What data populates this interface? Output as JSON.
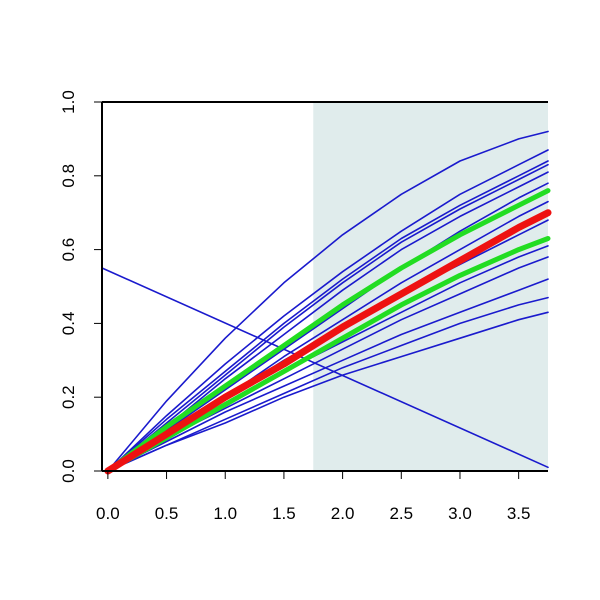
{
  "chart_data": {
    "type": "line",
    "title": "",
    "xlabel": "",
    "ylabel": "",
    "xlim": [
      -0.05,
      3.75
    ],
    "ylim": [
      0,
      1
    ],
    "x_ticks": [
      "0.0",
      "0.5",
      "1.0",
      "1.5",
      "2.0",
      "2.5",
      "3.0",
      "3.5"
    ],
    "y_ticks": [
      "0.0",
      "0.2",
      "0.4",
      "0.6",
      "0.8",
      "1.0"
    ],
    "x_tick_values": [
      0,
      0.5,
      1,
      1.5,
      2,
      2.5,
      3,
      3.5
    ],
    "y_tick_values": [
      0,
      0.2,
      0.4,
      0.6,
      0.8,
      1.0
    ],
    "shaded_region": {
      "x_from": 1.75,
      "x_to": 3.75,
      "color": "#e0ecec"
    },
    "grid": false,
    "legend": "none",
    "colors": {
      "blue": "#1a1acd",
      "red": "#ee1111",
      "green": "#22dd22"
    },
    "series": [
      {
        "color": "blue",
        "width": "thin",
        "x": [
          0,
          0.5,
          1,
          1.5,
          2,
          2.5,
          3,
          3.5,
          3.75
        ],
        "y": [
          0,
          0.19,
          0.36,
          0.51,
          0.64,
          0.75,
          0.84,
          0.9,
          0.92
        ]
      },
      {
        "color": "blue",
        "width": "thin",
        "x": [
          0,
          0.5,
          1,
          1.5,
          2,
          2.5,
          3,
          3.5,
          3.75
        ],
        "y": [
          0,
          0.15,
          0.29,
          0.42,
          0.54,
          0.65,
          0.75,
          0.83,
          0.87
        ]
      },
      {
        "color": "blue",
        "width": "thin",
        "x": [
          0,
          0.5,
          1,
          1.5,
          2,
          2.5,
          3,
          3.5,
          3.75
        ],
        "y": [
          0,
          0.14,
          0.27,
          0.4,
          0.52,
          0.63,
          0.72,
          0.8,
          0.84
        ]
      },
      {
        "color": "blue",
        "width": "thin",
        "x": [
          0,
          0.5,
          1,
          1.5,
          2,
          2.5,
          3,
          3.5,
          3.75
        ],
        "y": [
          0,
          0.13,
          0.26,
          0.39,
          0.51,
          0.62,
          0.71,
          0.79,
          0.83
        ]
      },
      {
        "color": "blue",
        "width": "thin",
        "x": [
          0,
          0.5,
          1,
          1.5,
          2,
          2.5,
          3,
          3.5,
          3.75
        ],
        "y": [
          0,
          0.12,
          0.25,
          0.37,
          0.49,
          0.6,
          0.69,
          0.77,
          0.81
        ]
      },
      {
        "color": "blue",
        "width": "thin",
        "x": [
          0,
          0.5,
          1,
          1.5,
          2,
          2.5,
          3,
          3.5,
          3.75
        ],
        "y": [
          0,
          0.11,
          0.22,
          0.33,
          0.44,
          0.55,
          0.65,
          0.74,
          0.78
        ]
      },
      {
        "color": "blue",
        "width": "thin",
        "x": [
          0,
          0.5,
          1,
          1.5,
          2,
          2.5,
          3,
          3.5,
          3.75
        ],
        "y": [
          0,
          0.1,
          0.2,
          0.31,
          0.41,
          0.51,
          0.6,
          0.69,
          0.73
        ]
      },
      {
        "color": "blue",
        "width": "thin",
        "x": [
          0,
          0.5,
          1,
          1.5,
          2,
          2.5,
          3,
          3.5,
          3.75
        ],
        "y": [
          0,
          0.1,
          0.2,
          0.3,
          0.39,
          0.48,
          0.56,
          0.64,
          0.68
        ]
      },
      {
        "color": "blue",
        "width": "thin",
        "x": [
          0,
          0.5,
          1,
          1.5,
          2,
          2.5,
          3,
          3.5,
          3.75
        ],
        "y": [
          0,
          0.09,
          0.18,
          0.27,
          0.35,
          0.43,
          0.51,
          0.58,
          0.61
        ]
      },
      {
        "color": "blue",
        "width": "thin",
        "x": [
          0,
          0.5,
          1,
          1.5,
          2,
          2.5,
          3,
          3.5,
          3.75
        ],
        "y": [
          0,
          0.09,
          0.17,
          0.25,
          0.33,
          0.41,
          0.48,
          0.55,
          0.58
        ]
      },
      {
        "color": "blue",
        "width": "thin",
        "x": [
          0,
          0.5,
          1,
          1.5,
          2,
          2.5,
          3,
          3.5,
          3.75
        ],
        "y": [
          0,
          0.08,
          0.16,
          0.23,
          0.3,
          0.37,
          0.43,
          0.49,
          0.52
        ]
      },
      {
        "color": "blue",
        "width": "thin",
        "x": [
          0,
          0.5,
          1,
          1.5,
          2,
          2.5,
          3,
          3.5,
          3.75
        ],
        "y": [
          0,
          0.07,
          0.14,
          0.21,
          0.28,
          0.34,
          0.4,
          0.45,
          0.47
        ]
      },
      {
        "color": "blue",
        "width": "thin",
        "x": [
          0,
          0.5,
          1,
          1.5,
          2,
          2.5,
          3,
          3.5,
          3.75
        ],
        "y": [
          0,
          0.07,
          0.13,
          0.2,
          0.26,
          0.31,
          0.36,
          0.41,
          0.43
        ]
      },
      {
        "color": "blue",
        "width": "thin",
        "x": [
          -0.05,
          3.75
        ],
        "y": [
          0.55,
          0.01
        ]
      },
      {
        "color": "green",
        "width": "medium",
        "x": [
          0,
          0.5,
          1,
          1.5,
          2,
          2.5,
          3,
          3.5,
          3.75
        ],
        "y": [
          0,
          0.12,
          0.23,
          0.34,
          0.45,
          0.55,
          0.64,
          0.72,
          0.76
        ]
      },
      {
        "color": "green",
        "width": "medium",
        "x": [
          0,
          0.5,
          1,
          1.5,
          2,
          2.5,
          3,
          3.5,
          3.75
        ],
        "y": [
          0,
          0.09,
          0.18,
          0.27,
          0.36,
          0.45,
          0.53,
          0.6,
          0.63
        ]
      },
      {
        "color": "red",
        "width": "thick",
        "x": [
          0,
          0.5,
          1,
          1.5,
          2,
          2.5,
          3,
          3.5,
          3.75
        ],
        "y": [
          0,
          0.1,
          0.2,
          0.29,
          0.39,
          0.48,
          0.57,
          0.66,
          0.7
        ]
      }
    ]
  }
}
